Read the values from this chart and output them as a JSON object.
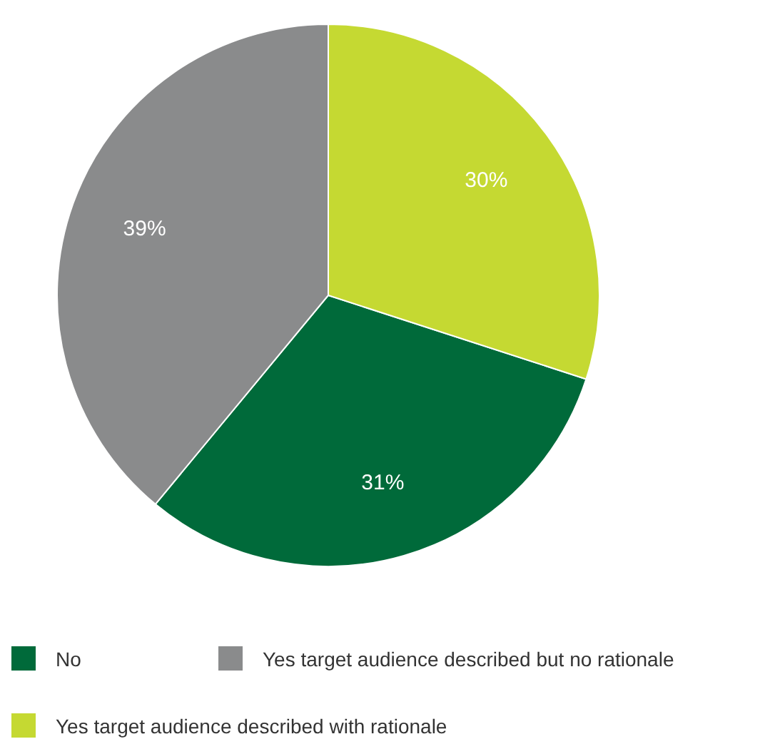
{
  "chart_data": {
    "type": "pie",
    "categories": [
      "No",
      "Yes target audience described but no rationale",
      "Yes target audience described with rationale"
    ],
    "values": [
      31,
      39,
      30
    ],
    "colors": [
      "#006a3a",
      "#8a8b8c",
      "#c5d932"
    ],
    "value_labels": [
      "31%",
      "39%",
      "30%"
    ],
    "legend": "bottom"
  }
}
